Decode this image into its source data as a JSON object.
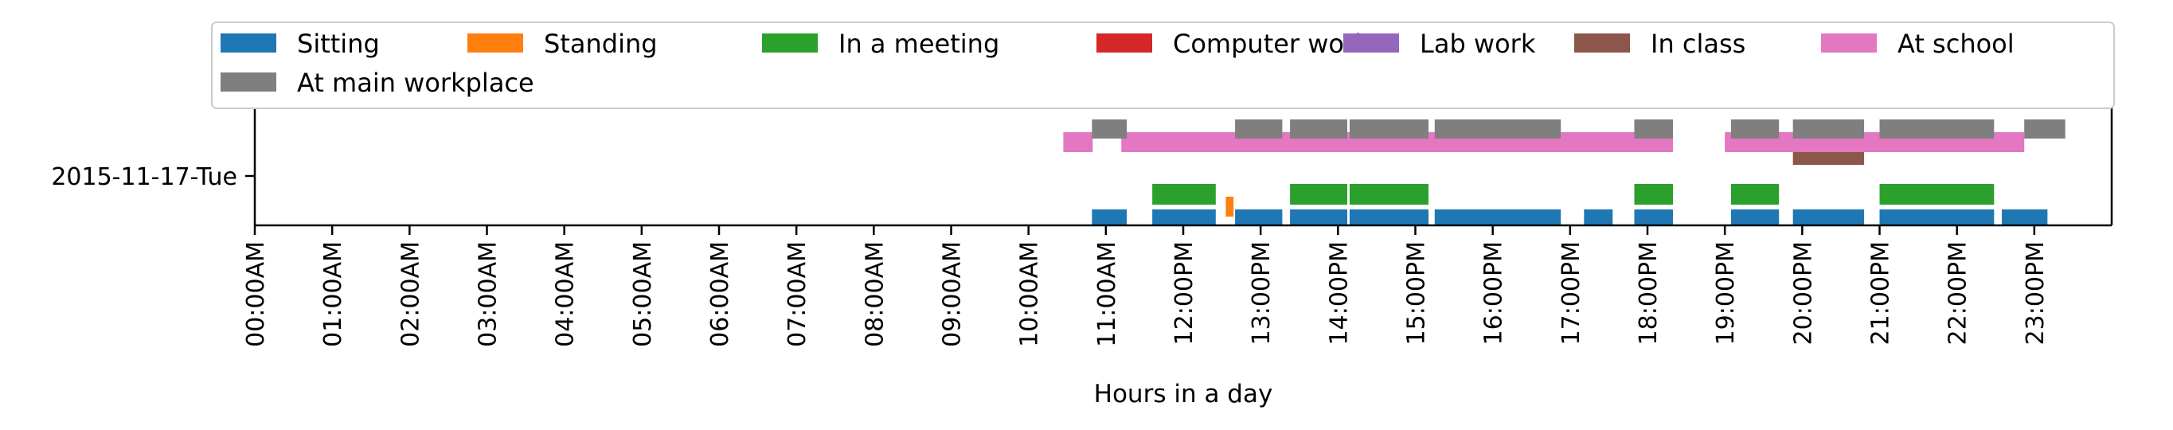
{
  "chart_data": {
    "type": "bar",
    "orientation": "horizontal-timeline",
    "title": "",
    "xlabel": "Hours in a day",
    "ylabel": "",
    "xlim": [
      0,
      24
    ],
    "x_ticks": [
      "00:00AM",
      "01:00AM",
      "02:00AM",
      "03:00AM",
      "04:00AM",
      "05:00AM",
      "06:00AM",
      "07:00AM",
      "08:00AM",
      "09:00AM",
      "10:00AM",
      "11:00AM",
      "12:00PM",
      "13:00PM",
      "14:00PM",
      "15:00PM",
      "16:00PM",
      "17:00PM",
      "18:00PM",
      "19:00PM",
      "20:00PM",
      "21:00PM",
      "22:00PM",
      "23:00PM"
    ],
    "categories": [
      "2015-11-17-Tue"
    ],
    "grid": false,
    "legend_position": "top",
    "series": [
      {
        "name": "Sitting",
        "color": "#1f77b4",
        "intervals": [
          [
            10.82,
            11.27
          ],
          [
            11.6,
            12.42
          ],
          [
            12.67,
            13.28
          ],
          [
            13.38,
            14.12
          ],
          [
            14.15,
            15.17
          ],
          [
            15.25,
            16.88
          ],
          [
            17.18,
            17.55
          ],
          [
            17.83,
            18.33
          ],
          [
            19.08,
            19.7
          ],
          [
            19.88,
            20.8
          ],
          [
            21.0,
            22.48
          ],
          [
            22.58,
            23.17
          ]
        ]
      },
      {
        "name": "Standing",
        "color": "#ff7f0e",
        "intervals": [
          [
            12.55,
            12.65
          ]
        ]
      },
      {
        "name": "In a meeting",
        "color": "#2ca02c",
        "intervals": [
          [
            11.6,
            12.42
          ],
          [
            13.38,
            14.12
          ],
          [
            14.15,
            15.17
          ],
          [
            17.83,
            18.33
          ],
          [
            19.08,
            19.7
          ],
          [
            21.0,
            22.48
          ]
        ]
      },
      {
        "name": "Computer work",
        "color": "#d62728",
        "intervals": []
      },
      {
        "name": "Lab work",
        "color": "#9467bd",
        "intervals": []
      },
      {
        "name": "In class",
        "color": "#8c564b",
        "intervals": [
          [
            19.88,
            20.8
          ]
        ]
      },
      {
        "name": "At school",
        "color": "#e377c2",
        "intervals": [
          [
            10.45,
            10.83
          ],
          [
            11.2,
            18.33
          ],
          [
            19.0,
            22.87
          ]
        ]
      },
      {
        "name": "At main workplace",
        "color": "#7f7f7f",
        "intervals": [
          [
            10.82,
            11.27
          ],
          [
            12.67,
            13.28
          ],
          [
            13.38,
            14.12
          ],
          [
            14.15,
            15.17
          ],
          [
            15.25,
            16.88
          ],
          [
            17.83,
            18.33
          ],
          [
            19.08,
            19.7
          ],
          [
            19.88,
            20.8
          ],
          [
            21.0,
            22.48
          ],
          [
            22.87,
            23.4
          ]
        ]
      }
    ]
  }
}
